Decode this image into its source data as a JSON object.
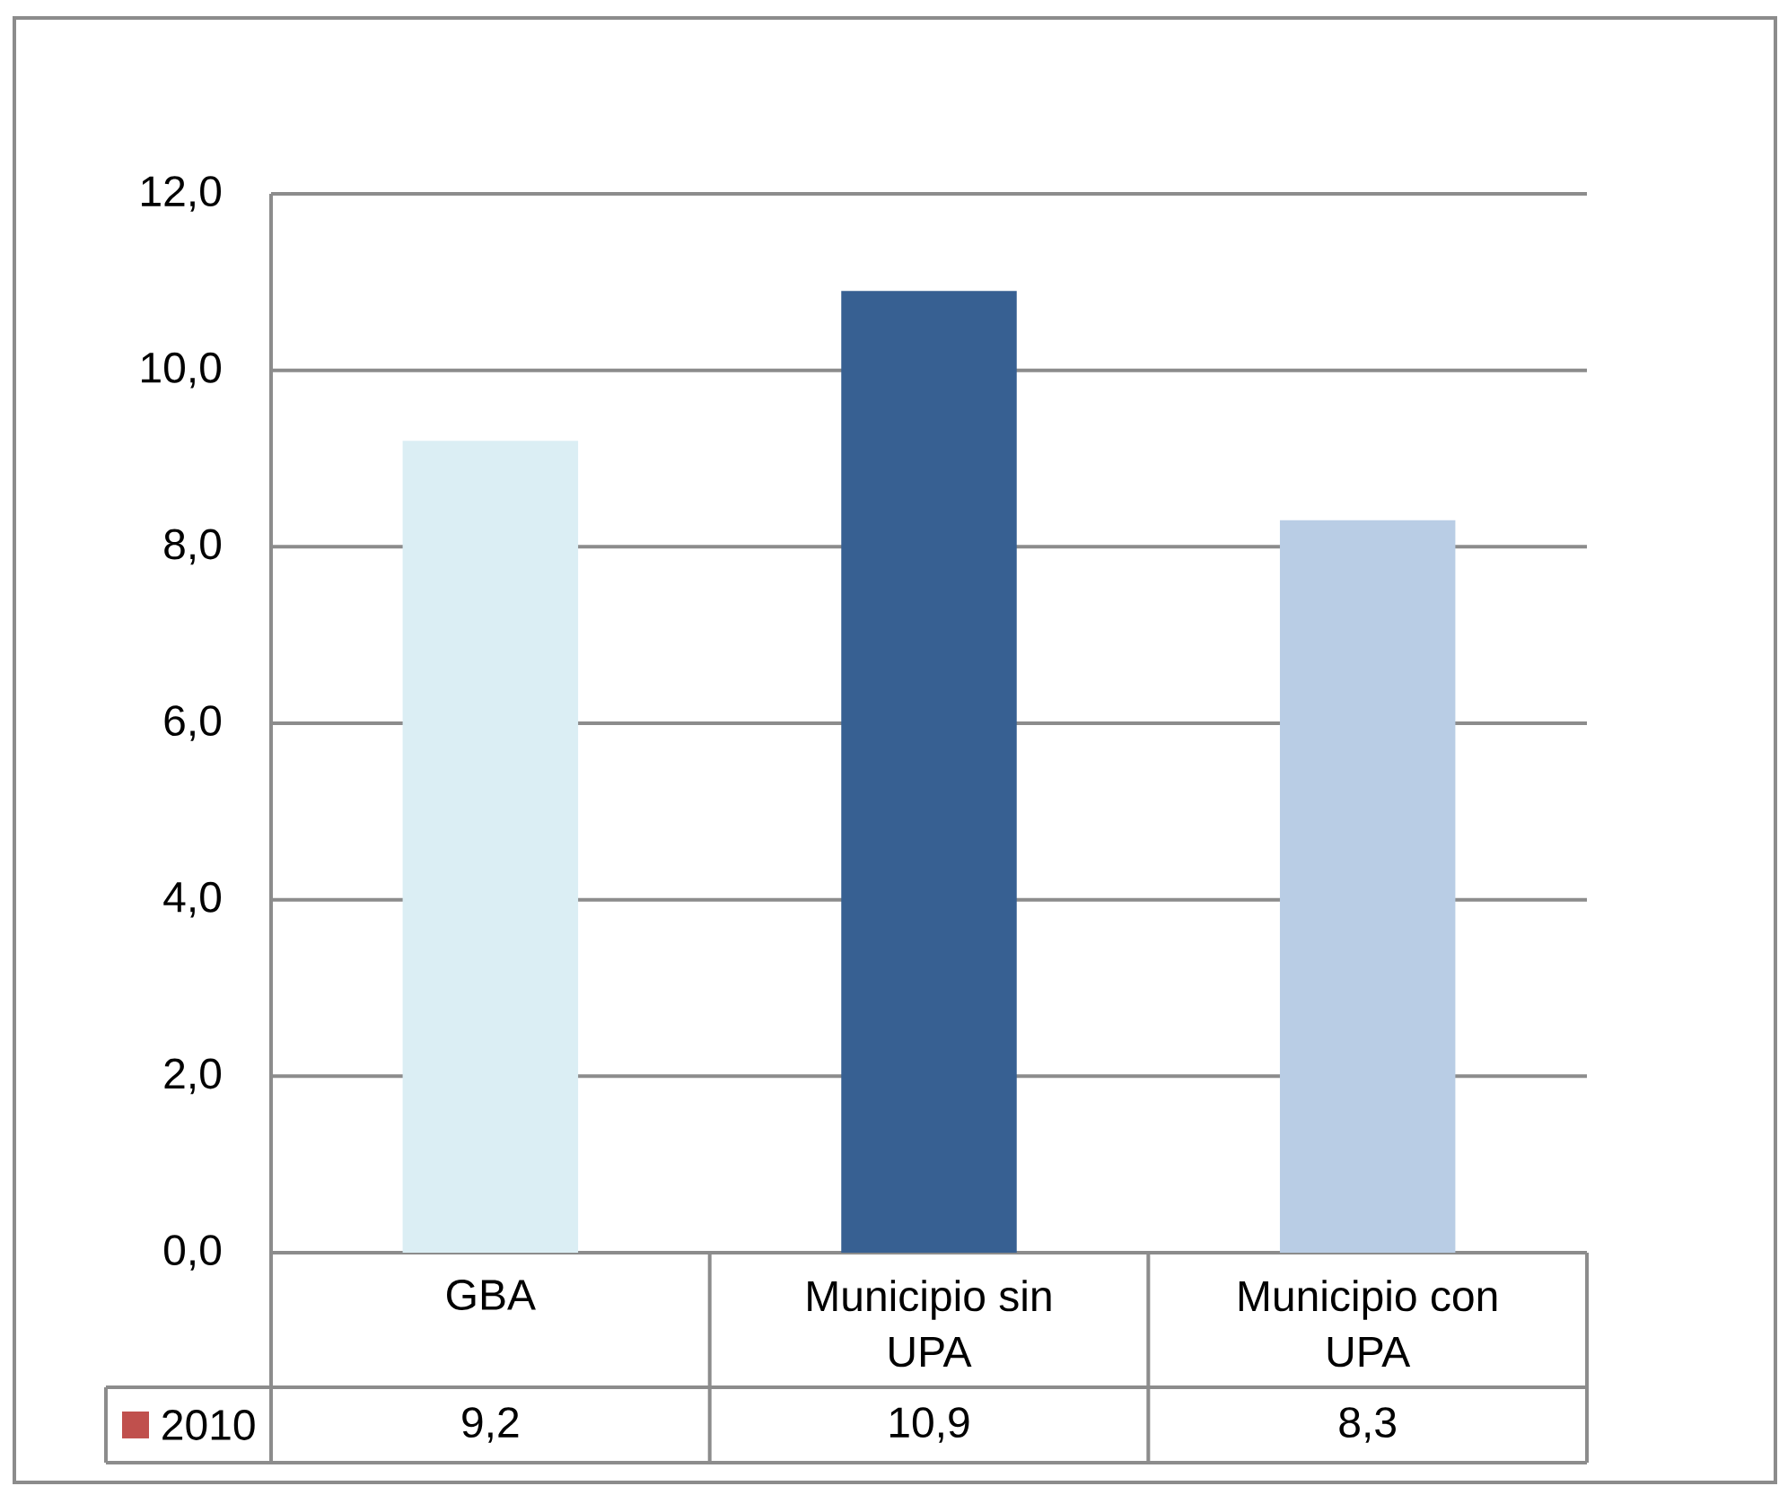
{
  "chart_data": {
    "type": "bar",
    "categories": [
      "GBA",
      "Municipio sin UPA",
      "Municipio con UPA"
    ],
    "series": [
      {
        "name": "2010",
        "color": "#c0504d",
        "colors": [
          "#dbeef4",
          "#376092",
          "#b9cde5"
        ],
        "values": [
          9.2,
          10.9,
          8.3
        ],
        "value_labels": [
          "9,2",
          "10,9",
          "8,3"
        ]
      }
    ],
    "ylim": [
      0,
      12
    ],
    "yticks": [
      {
        "value": 0,
        "label": "0,0"
      },
      {
        "value": 2,
        "label": "2,0"
      },
      {
        "value": 4,
        "label": "4,0"
      },
      {
        "value": 6,
        "label": "6,0"
      },
      {
        "value": 8,
        "label": "8,0"
      },
      {
        "value": 10,
        "label": "10,0"
      },
      {
        "value": 12,
        "label": "12,0"
      }
    ],
    "grid": "y",
    "legend": "bottom left"
  }
}
